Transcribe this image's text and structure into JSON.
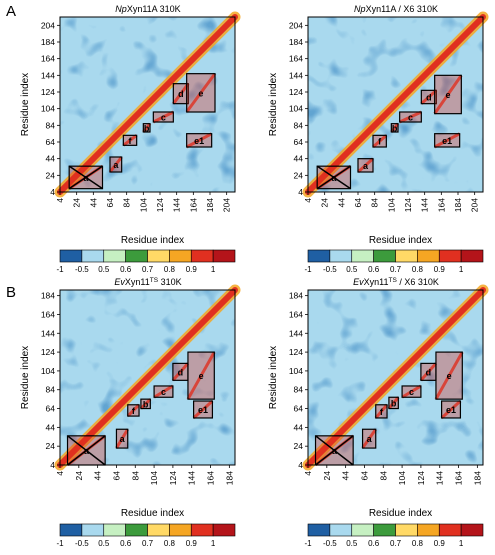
{
  "panel_labels": [
    "A",
    "B"
  ],
  "colorbar": {
    "ticks": [
      "-1",
      "-0.5",
      "0.5",
      "0.6",
      "0.7",
      "0.8",
      "0.9",
      "1"
    ],
    "colors": [
      "#1f5fa3",
      "#a9d9ee",
      "#c6f0c2",
      "#3c9b3c",
      "#ffd966",
      "#f5a623",
      "#e03020",
      "#b4141a"
    ]
  },
  "chart_data": [
    {
      "type": "heatmap",
      "title": "NpXyn11A 310K",
      "xlabel": "Residue index",
      "ylabel": "Residue index",
      "ticks": [
        "4",
        "24",
        "44",
        "64",
        "84",
        "104",
        "124",
        "144",
        "164",
        "184",
        "204"
      ],
      "xlim": [
        4,
        214
      ],
      "domains": [
        {
          "label": "a",
          "x": [
            15,
            55
          ],
          "y": [
            8,
            35
          ]
        },
        {
          "label": "a",
          "x": [
            64,
            78
          ],
          "y": [
            28,
            46
          ]
        },
        {
          "label": "b",
          "x": [
            104,
            112
          ],
          "y": [
            76,
            86
          ]
        },
        {
          "label": "f",
          "x": [
            80,
            96
          ],
          "y": [
            60,
            72
          ]
        },
        {
          "label": "c",
          "x": [
            116,
            140
          ],
          "y": [
            88,
            100
          ]
        },
        {
          "label": "d",
          "x": [
            140,
            158
          ],
          "y": [
            110,
            134
          ]
        },
        {
          "label": "e",
          "x": [
            156,
            190
          ],
          "y": [
            100,
            146
          ]
        },
        {
          "label": "e1",
          "x": [
            156,
            186
          ],
          "y": [
            58,
            74
          ]
        }
      ]
    },
    {
      "type": "heatmap",
      "title": "NpXyn11A / X6 310K",
      "xlabel": "Residue index",
      "ylabel": "Residue index",
      "ticks": [
        "4",
        "24",
        "44",
        "64",
        "84",
        "104",
        "124",
        "144",
        "164",
        "184",
        "204"
      ],
      "xlim": [
        4,
        214
      ],
      "domains": [
        {
          "label": "a",
          "x": [
            15,
            55
          ],
          "y": [
            8,
            35
          ]
        },
        {
          "label": "a",
          "x": [
            64,
            82
          ],
          "y": [
            28,
            44
          ]
        },
        {
          "label": "b",
          "x": [
            104,
            112
          ],
          "y": [
            76,
            86
          ]
        },
        {
          "label": "f",
          "x": [
            82,
            98
          ],
          "y": [
            58,
            72
          ]
        },
        {
          "label": "c",
          "x": [
            114,
            140
          ],
          "y": [
            88,
            100
          ]
        },
        {
          "label": "d",
          "x": [
            140,
            158
          ],
          "y": [
            110,
            126
          ]
        },
        {
          "label": "e",
          "x": [
            156,
            188
          ],
          "y": [
            98,
            144
          ]
        },
        {
          "label": "e1",
          "x": [
            156,
            186
          ],
          "y": [
            58,
            74
          ]
        }
      ]
    },
    {
      "type": "heatmap",
      "title": "EvXyn11TS 310K",
      "xlabel": "Residue index",
      "ylabel": "Residue index",
      "ticks": [
        "4",
        "24",
        "44",
        "64",
        "84",
        "104",
        "124",
        "144",
        "164",
        "184"
      ],
      "xlim": [
        4,
        190
      ],
      "domains": [
        {
          "label": "a",
          "x": [
            12,
            52
          ],
          "y": [
            4,
            35
          ]
        },
        {
          "label": "a",
          "x": [
            64,
            76
          ],
          "y": [
            22,
            42
          ]
        },
        {
          "label": "f",
          "x": [
            76,
            88
          ],
          "y": [
            56,
            68
          ]
        },
        {
          "label": "b",
          "x": [
            90,
            100
          ],
          "y": [
            64,
            74
          ]
        },
        {
          "label": "c",
          "x": [
            104,
            124
          ],
          "y": [
            76,
            88
          ]
        },
        {
          "label": "d",
          "x": [
            124,
            140
          ],
          "y": [
            94,
            112
          ]
        },
        {
          "label": "e",
          "x": [
            140,
            168
          ],
          "y": [
            74,
            124
          ]
        },
        {
          "label": "e1",
          "x": [
            146,
            166
          ],
          "y": [
            54,
            72
          ]
        }
      ]
    },
    {
      "type": "heatmap",
      "title": "EvXyn11TS / X6 310K",
      "xlabel": "Residue index",
      "ylabel": "Residue index",
      "ticks": [
        "4",
        "24",
        "44",
        "64",
        "84",
        "104",
        "124",
        "144",
        "164",
        "184"
      ],
      "xlim": [
        4,
        190
      ],
      "domains": [
        {
          "label": "a",
          "x": [
            12,
            52
          ],
          "y": [
            4,
            35
          ]
        },
        {
          "label": "a",
          "x": [
            62,
            76
          ],
          "y": [
            22,
            42
          ]
        },
        {
          "label": "f",
          "x": [
            76,
            88
          ],
          "y": [
            54,
            68
          ]
        },
        {
          "label": "b",
          "x": [
            90,
            100
          ],
          "y": [
            64,
            76
          ]
        },
        {
          "label": "c",
          "x": [
            104,
            124
          ],
          "y": [
            76,
            88
          ]
        },
        {
          "label": "d",
          "x": [
            124,
            140
          ],
          "y": [
            94,
            112
          ]
        },
        {
          "label": "e",
          "x": [
            140,
            168
          ],
          "y": [
            74,
            124
          ]
        },
        {
          "label": "e1",
          "x": [
            146,
            166
          ],
          "y": [
            54,
            72
          ]
        }
      ]
    }
  ]
}
